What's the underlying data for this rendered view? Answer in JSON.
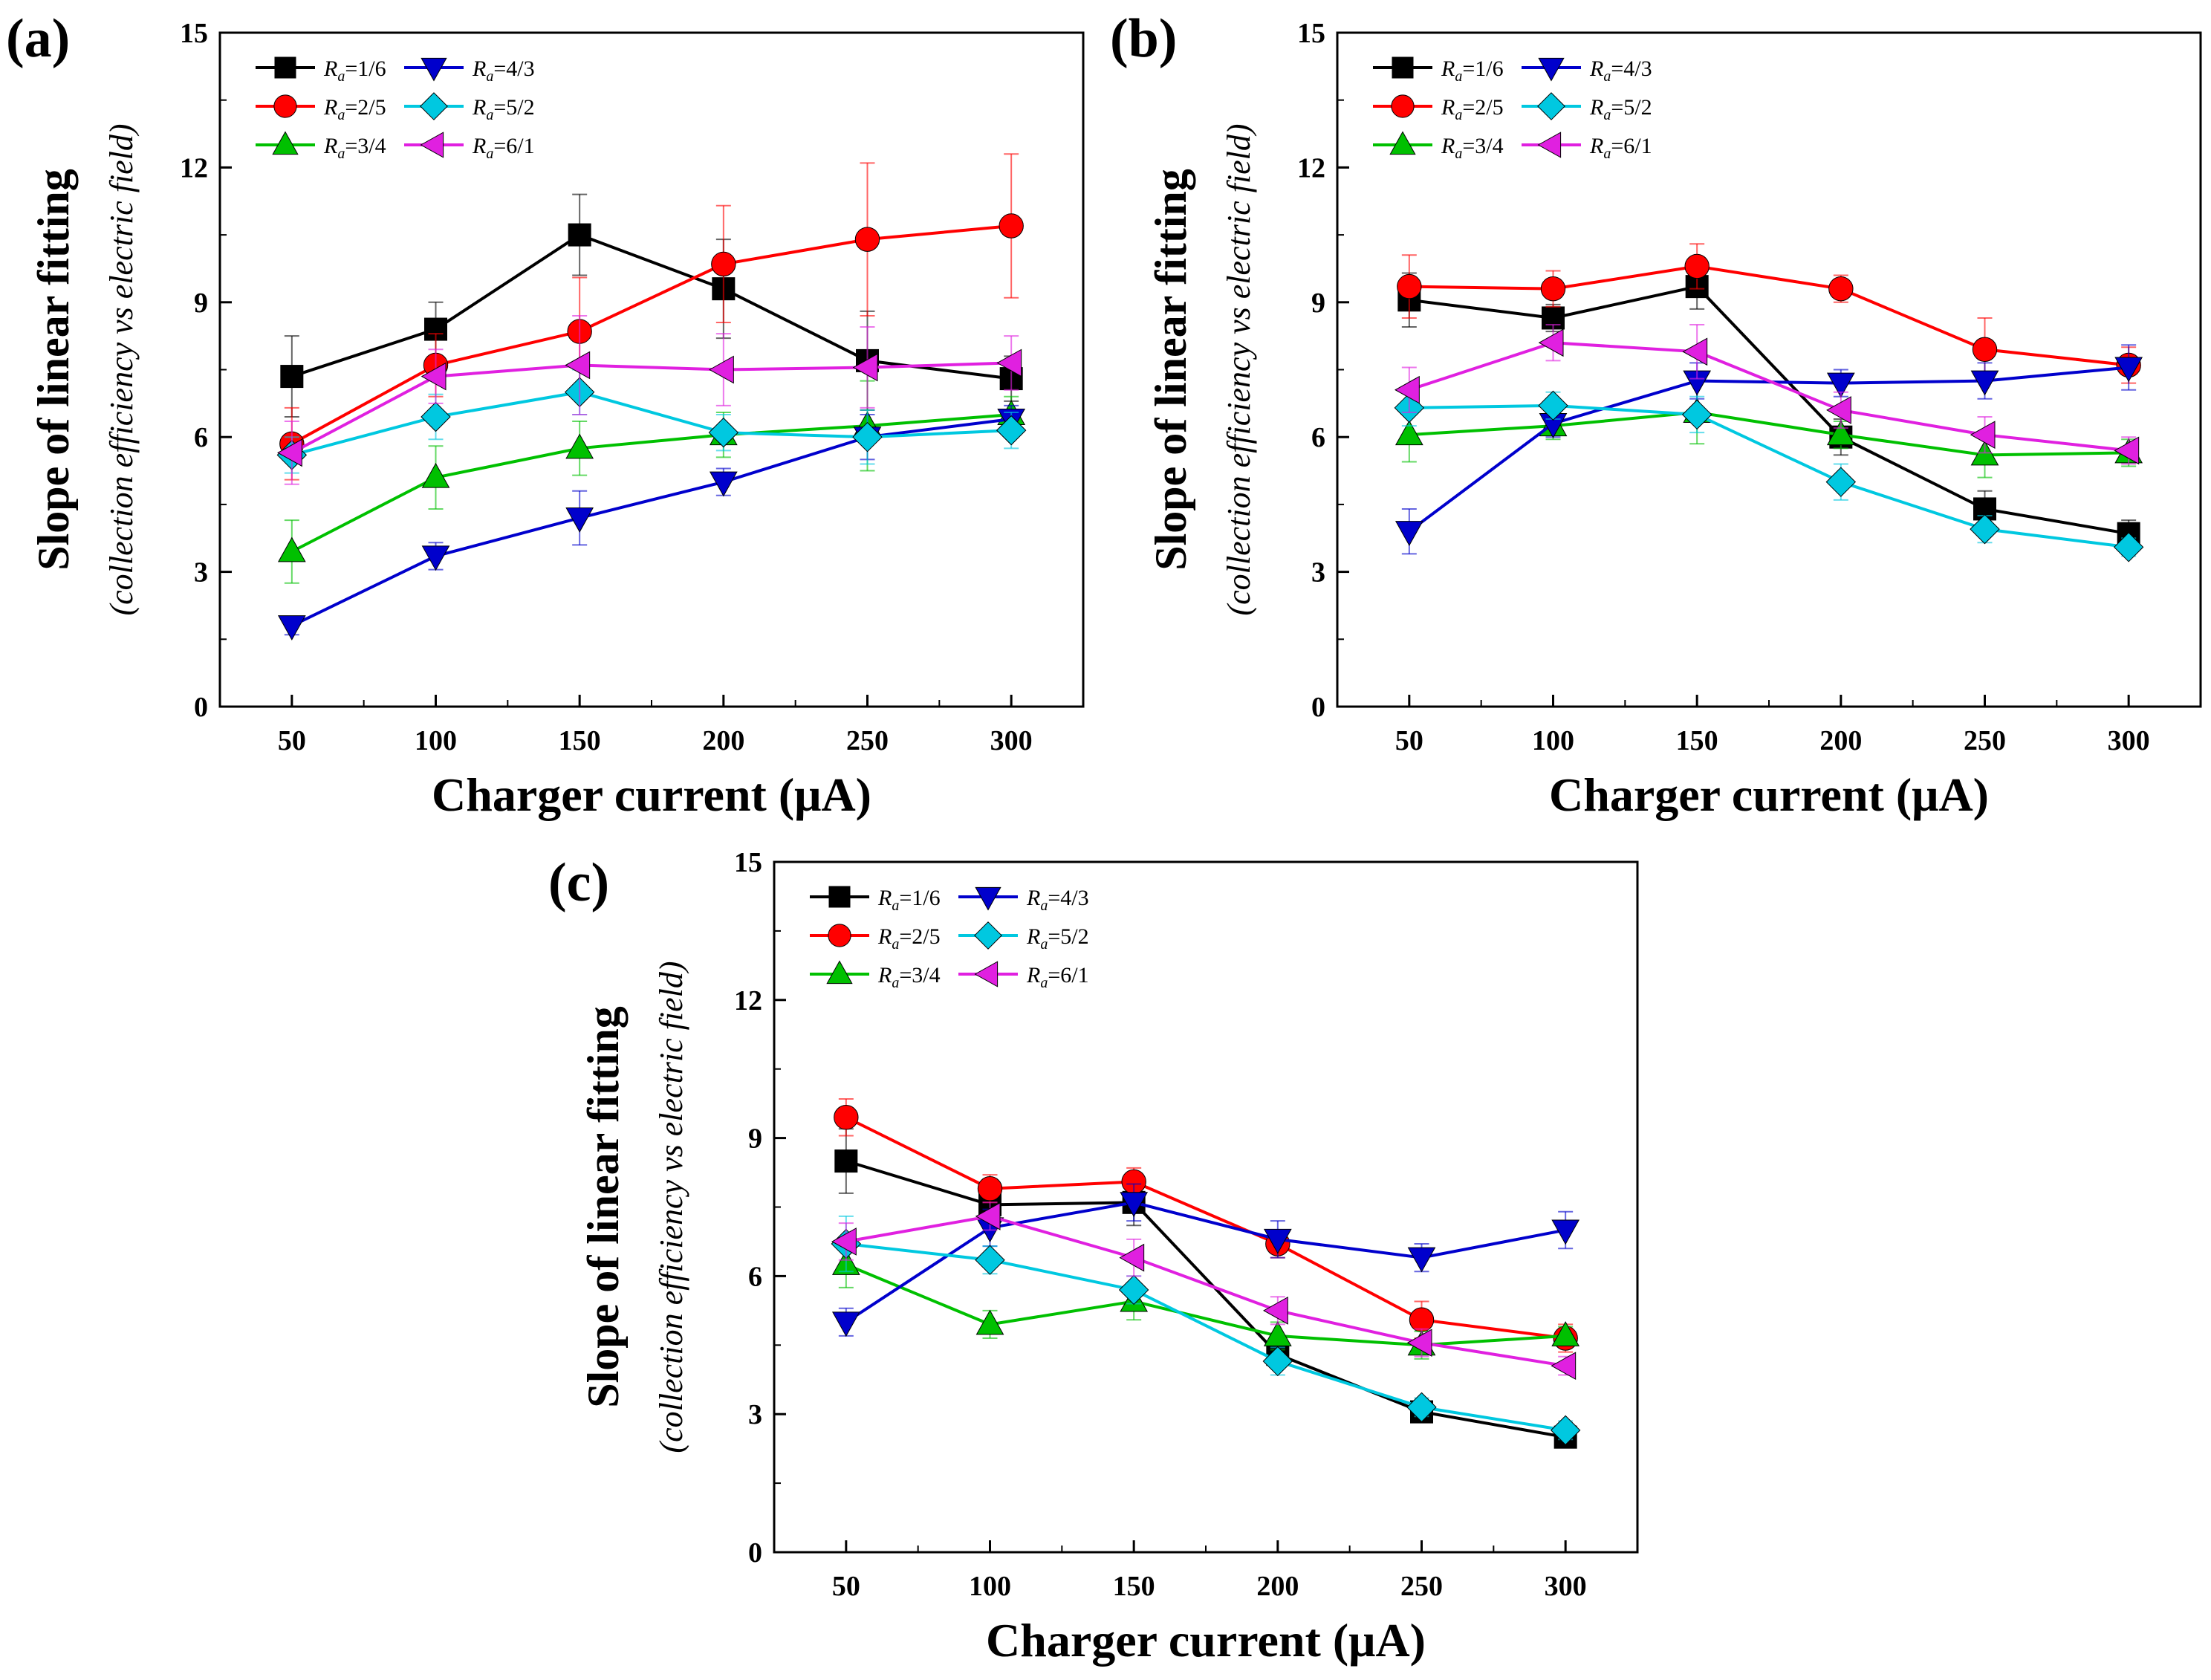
{
  "chart_data": [
    {
      "type": "line",
      "panel_label": "(a)",
      "xlabel": "Charger current (μA)",
      "ylabel": "Slope of linear fitting",
      "ylabel_sub": "(collection efficiency vs electric field)",
      "x": [
        50,
        100,
        150,
        200,
        250,
        300
      ],
      "xticks": [
        "50",
        "100",
        "150",
        "200",
        "250",
        "300"
      ],
      "xlim": [
        25,
        325
      ],
      "ylim": [
        0,
        15
      ],
      "yticks": [
        "0",
        "3",
        "6",
        "9",
        "12",
        "15"
      ],
      "legend_position": "top-left",
      "series": [
        {
          "name": "Ra=1/6",
          "legend_prefix": "R",
          "legend_sub": "a",
          "legend_value": "=1/6",
          "color": "#000000",
          "marker": "square",
          "values": [
            7.35,
            8.4,
            10.5,
            9.3,
            7.7,
            7.3
          ],
          "errors": [
            0.9,
            0.6,
            0.9,
            1.1,
            1.1,
            0.5
          ]
        },
        {
          "name": "Ra=2/5",
          "legend_prefix": "R",
          "legend_sub": "a",
          "legend_value": "=2/5",
          "color": "#ff0000",
          "marker": "circle",
          "values": [
            5.85,
            7.6,
            8.35,
            9.85,
            10.4,
            10.7
          ],
          "errors": [
            0.8,
            0.7,
            1.2,
            1.3,
            1.7,
            1.6
          ]
        },
        {
          "name": "Ra=3/4",
          "legend_prefix": "R",
          "legend_sub": "a",
          "legend_value": "=3/4",
          "color": "#00c000",
          "marker": "triangle-up",
          "values": [
            3.45,
            5.1,
            5.75,
            6.05,
            6.25,
            6.5
          ],
          "errors": [
            0.7,
            0.7,
            0.6,
            0.5,
            1.0,
            0.4
          ]
        },
        {
          "name": "Ra=4/3",
          "legend_prefix": "R",
          "legend_sub": "a",
          "legend_value": "=4/3",
          "color": "#0000cc",
          "marker": "triangle-down",
          "values": [
            1.8,
            3.35,
            4.2,
            5.0,
            6.0,
            6.4
          ],
          "errors": [
            0.2,
            0.3,
            0.6,
            0.3,
            0.5,
            0.3
          ]
        },
        {
          "name": "Ra=5/2",
          "legend_prefix": "R",
          "legend_sub": "a",
          "legend_value": "=5/2",
          "color": "#00c8e0",
          "marker": "diamond",
          "values": [
            5.6,
            6.45,
            7.0,
            6.1,
            6.0,
            6.15
          ],
          "errors": [
            0.4,
            0.5,
            0.5,
            0.4,
            0.6,
            0.4
          ]
        },
        {
          "name": "Ra=6/1",
          "legend_prefix": "R",
          "legend_sub": "a",
          "legend_value": "=6/1",
          "color": "#e020e0",
          "marker": "triangle-left",
          "values": [
            5.65,
            7.35,
            7.6,
            7.5,
            7.55,
            7.65
          ],
          "errors": [
            0.7,
            0.6,
            1.1,
            0.8,
            0.9,
            0.6
          ]
        }
      ]
    },
    {
      "type": "line",
      "panel_label": "(b)",
      "xlabel": "Charger current (μA)",
      "ylabel": "Slope of linear fitting",
      "ylabel_sub": "(collection efficiency vs electric field)",
      "x": [
        50,
        100,
        150,
        200,
        250,
        300
      ],
      "xticks": [
        "50",
        "100",
        "150",
        "200",
        "250",
        "300"
      ],
      "xlim": [
        25,
        325
      ],
      "ylim": [
        0,
        15
      ],
      "yticks": [
        "0",
        "3",
        "6",
        "9",
        "12",
        "15"
      ],
      "legend_position": "top-left",
      "series": [
        {
          "name": "Ra=1/6",
          "legend_prefix": "R",
          "legend_sub": "a",
          "legend_value": "=1/6",
          "color": "#000000",
          "marker": "square",
          "values": [
            9.05,
            8.65,
            9.35,
            6.0,
            4.4,
            3.85
          ],
          "errors": [
            0.6,
            0.3,
            0.5,
            0.4,
            0.4,
            0.3
          ]
        },
        {
          "name": "Ra=2/5",
          "legend_prefix": "R",
          "legend_sub": "a",
          "legend_value": "=2/5",
          "color": "#ff0000",
          "marker": "circle",
          "values": [
            9.35,
            9.3,
            9.8,
            9.3,
            7.95,
            7.6
          ],
          "errors": [
            0.7,
            0.4,
            0.5,
            0.3,
            0.7,
            0.4
          ]
        },
        {
          "name": "Ra=3/4",
          "legend_prefix": "R",
          "legend_sub": "a",
          "legend_value": "=3/4",
          "color": "#00c000",
          "marker": "triangle-up",
          "values": [
            6.05,
            6.25,
            6.55,
            6.05,
            5.6,
            5.65
          ],
          "errors": [
            0.6,
            0.3,
            0.7,
            0.3,
            0.5,
            0.3
          ]
        },
        {
          "name": "Ra=4/3",
          "legend_prefix": "R",
          "legend_sub": "a",
          "legend_value": "=4/3",
          "color": "#0000cc",
          "marker": "triangle-down",
          "values": [
            3.9,
            6.3,
            7.25,
            7.2,
            7.25,
            7.55
          ],
          "errors": [
            0.5,
            0.3,
            0.4,
            0.3,
            0.4,
            0.5
          ]
        },
        {
          "name": "Ra=5/2",
          "legend_prefix": "R",
          "legend_sub": "a",
          "legend_value": "=5/2",
          "color": "#00c8e0",
          "marker": "diamond",
          "values": [
            6.65,
            6.7,
            6.5,
            5.0,
            3.95,
            3.55
          ],
          "errors": [
            0.4,
            0.3,
            0.4,
            0.4,
            0.3,
            0.2
          ]
        },
        {
          "name": "Ra=6/1",
          "legend_prefix": "R",
          "legend_sub": "a",
          "legend_value": "=6/1",
          "color": "#e020e0",
          "marker": "triangle-left",
          "values": [
            7.05,
            8.1,
            7.9,
            6.6,
            6.05,
            5.7
          ],
          "errors": [
            0.5,
            0.4,
            0.6,
            0.4,
            0.4,
            0.3
          ]
        }
      ]
    },
    {
      "type": "line",
      "panel_label": "(c)",
      "xlabel": "Charger current (μA)",
      "ylabel": "Slope of linear fitting",
      "ylabel_sub": "(collection efficiency vs electric field)",
      "x": [
        50,
        100,
        150,
        200,
        250,
        300
      ],
      "xticks": [
        "50",
        "100",
        "150",
        "200",
        "250",
        "300"
      ],
      "xlim": [
        25,
        325
      ],
      "ylim": [
        0,
        15
      ],
      "yticks": [
        "0",
        "3",
        "6",
        "9",
        "12",
        "15"
      ],
      "legend_position": "top-left",
      "series": [
        {
          "name": "Ra=1/6",
          "legend_prefix": "R",
          "legend_sub": "a",
          "legend_value": "=1/6",
          "color": "#000000",
          "marker": "square",
          "values": [
            8.5,
            7.55,
            7.6,
            4.3,
            3.05,
            2.5
          ],
          "errors": [
            0.7,
            0.3,
            0.5,
            0.3,
            0.2,
            0.2
          ]
        },
        {
          "name": "Ra=2/5",
          "legend_prefix": "R",
          "legend_sub": "a",
          "legend_value": "=2/5",
          "color": "#ff0000",
          "marker": "circle",
          "values": [
            9.45,
            7.9,
            8.05,
            6.7,
            5.05,
            4.65
          ],
          "errors": [
            0.4,
            0.3,
            0.3,
            0.3,
            0.4,
            0.3
          ]
        },
        {
          "name": "Ra=3/4",
          "legend_prefix": "R",
          "legend_sub": "a",
          "legend_value": "=3/4",
          "color": "#00c000",
          "marker": "triangle-up",
          "values": [
            6.25,
            4.95,
            5.45,
            4.7,
            4.5,
            4.7
          ],
          "errors": [
            0.5,
            0.3,
            0.4,
            0.3,
            0.3,
            0.2
          ]
        },
        {
          "name": "Ra=4/3",
          "legend_prefix": "R",
          "legend_sub": "a",
          "legend_value": "=4/3",
          "color": "#0000cc",
          "marker": "triangle-down",
          "values": [
            5.0,
            7.05,
            7.6,
            6.8,
            6.4,
            7.0
          ],
          "errors": [
            0.3,
            0.4,
            0.4,
            0.4,
            0.3,
            0.4
          ]
        },
        {
          "name": "Ra=5/2",
          "legend_prefix": "R",
          "legend_sub": "a",
          "legend_value": "=5/2",
          "color": "#00c8e0",
          "marker": "diamond",
          "values": [
            6.7,
            6.35,
            5.7,
            4.15,
            3.15,
            2.65
          ],
          "errors": [
            0.6,
            0.3,
            0.3,
            0.3,
            0.2,
            0.2
          ]
        },
        {
          "name": "Ra=6/1",
          "legend_prefix": "R",
          "legend_sub": "a",
          "legend_value": "=6/1",
          "color": "#e020e0",
          "marker": "triangle-left",
          "values": [
            6.75,
            7.3,
            6.4,
            5.25,
            4.55,
            4.05
          ],
          "errors": [
            0.4,
            0.3,
            0.4,
            0.3,
            0.3,
            0.2
          ]
        }
      ]
    }
  ]
}
